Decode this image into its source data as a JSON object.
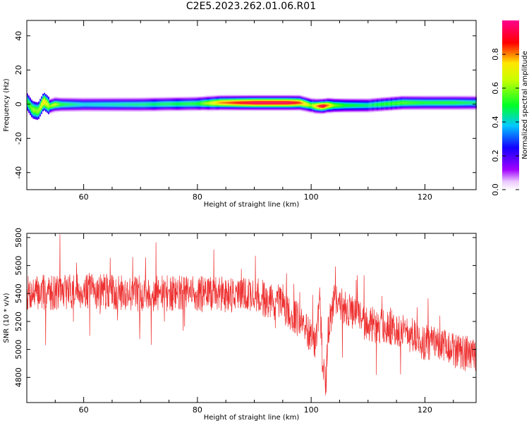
{
  "title": "C2E5.2023.262.01.06.R01",
  "chart_data": [
    {
      "type": "heatmap",
      "xlabel": "Height of straight line (km)",
      "ylabel": "Frequency (Hz)",
      "xlim": [
        50,
        129
      ],
      "ylim": [
        -50,
        49
      ],
      "xticks": [
        "60",
        "80",
        "100",
        "120"
      ],
      "yticks": [
        "40",
        "20",
        "0",
        "-20",
        "-40"
      ],
      "ridge": {
        "x": [
          50,
          51,
          52,
          53,
          54,
          55,
          56,
          60,
          70,
          80,
          84,
          90,
          96,
          98,
          100,
          101,
          102,
          103,
          104,
          106,
          110,
          112,
          116,
          120,
          125,
          129
        ],
        "frequency": [
          2,
          -3,
          -4,
          2,
          -1,
          0,
          0,
          0,
          0,
          0.5,
          1,
          1,
          1,
          1,
          -0.5,
          -1,
          -1,
          -0.5,
          -0.5,
          -0.5,
          -0.5,
          0,
          1,
          1,
          1,
          1
        ],
        "amplitude": [
          0.5,
          0.6,
          0.6,
          0.75,
          0.6,
          0.65,
          0.5,
          0.4,
          0.45,
          0.5,
          0.8,
          0.95,
          0.95,
          0.85,
          0.6,
          0.8,
          0.95,
          0.8,
          0.6,
          0.5,
          0.45,
          0.5,
          0.55,
          0.5,
          0.5,
          0.45
        ]
      },
      "colorbar": {
        "label": "Normalized spectral amplitude",
        "ticks": [
          "0.0",
          "0.2",
          "0.4",
          "0.6",
          "0.8"
        ],
        "range": [
          0,
          1
        ]
      }
    },
    {
      "type": "line",
      "xlabel": "Height of straight line (km)",
      "ylabel": "SNR (10 * v/v)",
      "xlim": [
        50,
        129
      ],
      "ylim": [
        4620,
        5830
      ],
      "xticks": [
        "60",
        "80",
        "100",
        "120"
      ],
      "yticks": [
        "5800",
        "5600",
        "5400",
        "5200",
        "5000",
        "4800"
      ],
      "color": "#ee3030",
      "trend": {
        "x": [
          50,
          60,
          70,
          80,
          90,
          95,
          98,
          100,
          101,
          101.5,
          102,
          102.5,
          103,
          104,
          106,
          110,
          115,
          120,
          125,
          129
        ],
        "y": [
          5400,
          5420,
          5400,
          5400,
          5390,
          5310,
          5200,
          5100,
          5050,
          5400,
          4900,
          4700,
          5150,
          5350,
          5300,
          5180,
          5150,
          5050,
          5000,
          4950
        ]
      }
    }
  ]
}
